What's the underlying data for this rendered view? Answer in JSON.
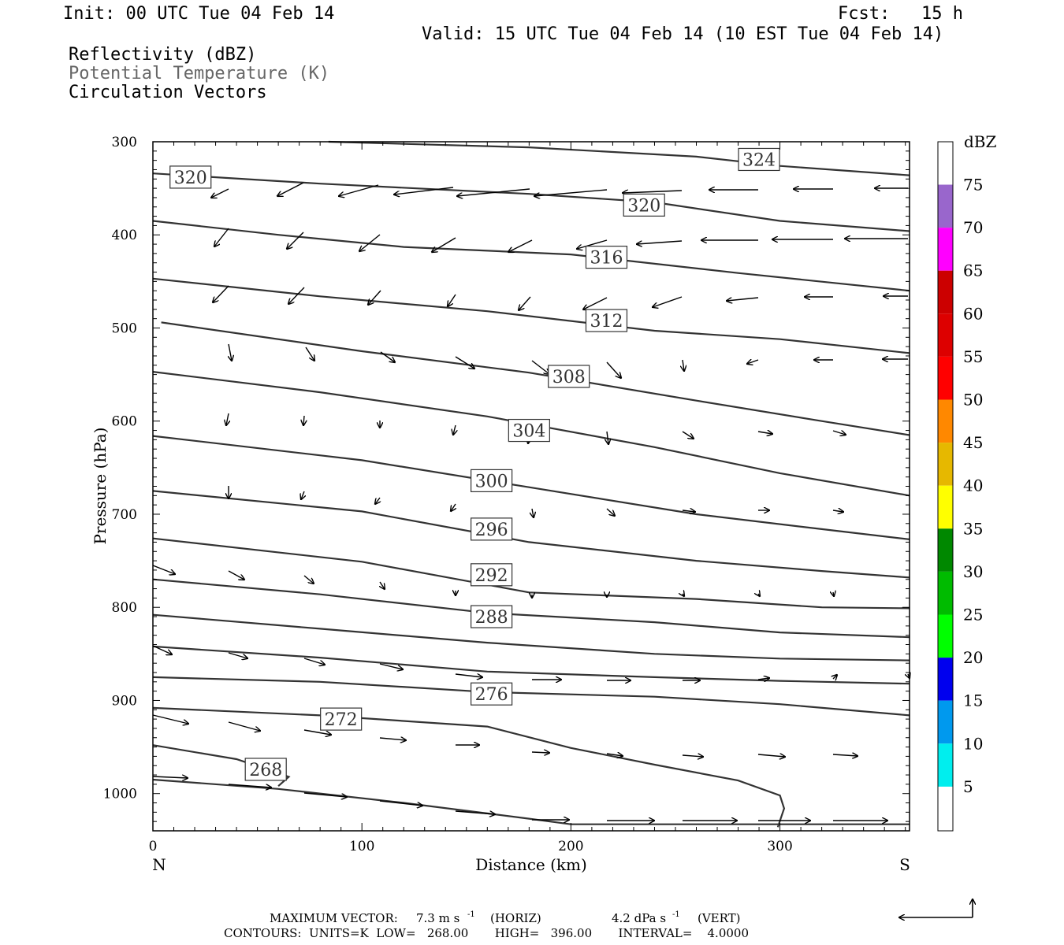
{
  "header": {
    "init": "Init: 00 UTC Tue 04 Feb 14",
    "fcst": "Fcst:   15 h",
    "valid": "Valid: 15 UTC Tue 04 Feb 14 (10 EST Tue 04 Feb 14)",
    "fields": [
      "Reflectivity (dBZ)",
      "Potential Temperature (K)",
      "Circulation Vectors"
    ]
  },
  "colors": {
    "potential_temperature_label": "#666666",
    "contour": "#333333",
    "frame": "#000000"
  },
  "chart_data": {
    "type": "line",
    "title": "",
    "xlabel": "Distance (km)",
    "ylabel": "Pressure (hPa)",
    "x_range": [
      0,
      362
    ],
    "y_range": [
      300,
      1040
    ],
    "y_inverted": true,
    "x_ticks": [
      0,
      100,
      200,
      300
    ],
    "y_ticks": [
      300,
      400,
      500,
      600,
      700,
      800,
      900,
      1000
    ],
    "x_end_labels": {
      "left": "N",
      "right": "S"
    },
    "contour_labels": [
      324,
      320,
      320,
      316,
      312,
      308,
      304,
      300,
      296,
      292,
      288,
      276,
      272,
      268
    ],
    "contour_label_positions": [
      {
        "value": 324,
        "x": 290,
        "p": 319
      },
      {
        "value": 320,
        "x": 18,
        "p": 338
      },
      {
        "value": 320,
        "x": 235,
        "p": 368
      },
      {
        "value": 316,
        "x": 217,
        "p": 424
      },
      {
        "value": 312,
        "x": 217,
        "p": 492
      },
      {
        "value": 308,
        "x": 199,
        "p": 552
      },
      {
        "value": 304,
        "x": 180,
        "p": 610
      },
      {
        "value": 300,
        "x": 162,
        "p": 664
      },
      {
        "value": 296,
        "x": 162,
        "p": 716
      },
      {
        "value": 292,
        "x": 162,
        "p": 765
      },
      {
        "value": 288,
        "x": 162,
        "p": 810
      },
      {
        "value": 276,
        "x": 162,
        "p": 893
      },
      {
        "value": 272,
        "x": 90,
        "p": 920
      },
      {
        "value": 268,
        "x": 54,
        "p": 974
      }
    ],
    "series": [
      {
        "x": [
          84,
          180,
          260,
          300,
          362
        ],
        "p": [
          300,
          306,
          316,
          326,
          336
        ]
      },
      {
        "x": [
          0,
          80,
          180,
          240,
          300,
          362
        ],
        "p": [
          334,
          345,
          356,
          365,
          385,
          396
        ]
      },
      {
        "x": [
          0,
          60,
          120,
          200,
          280,
          362
        ],
        "p": [
          385,
          400,
          413,
          421,
          441,
          460
        ]
      },
      {
        "x": [
          0,
          80,
          160,
          240,
          300,
          362
        ],
        "p": [
          447,
          466,
          482,
          503,
          512,
          527
        ]
      },
      {
        "x": [
          4,
          100,
          180,
          260,
          320,
          362
        ],
        "p": [
          494,
          525,
          548,
          578,
          600,
          615
        ]
      },
      {
        "x": [
          0,
          80,
          160,
          240,
          300,
          362
        ],
        "p": [
          547,
          569,
          595,
          628,
          656,
          680
        ]
      },
      {
        "x": [
          0,
          100,
          180,
          260,
          320,
          362
        ],
        "p": [
          616,
          642,
          671,
          700,
          716,
          727
        ]
      },
      {
        "x": [
          0,
          100,
          180,
          260,
          320,
          362
        ],
        "p": [
          675,
          697,
          730,
          750,
          761,
          768
        ]
      },
      {
        "x": [
          0,
          100,
          180,
          260,
          320,
          362
        ],
        "p": [
          726,
          751,
          784,
          791,
          800,
          801
        ]
      },
      {
        "x": [
          0,
          80,
          160,
          240,
          300,
          362
        ],
        "p": [
          770,
          786,
          806,
          816,
          827,
          832
        ]
      },
      {
        "x": [
          0,
          80,
          160,
          240,
          300,
          362
        ],
        "p": [
          808,
          823,
          838,
          850,
          855,
          857
        ]
      },
      {
        "x": [
          0,
          80,
          160,
          240,
          300,
          362
        ],
        "p": [
          842,
          854,
          869,
          875,
          879,
          882
        ]
      },
      {
        "x": [
          0,
          80,
          160,
          240,
          300,
          362
        ],
        "p": [
          875,
          880,
          891,
          896,
          904,
          916
        ]
      },
      {
        "x": [
          0,
          80,
          160,
          200,
          240,
          280,
          300,
          302,
          299
        ],
        "p": [
          908,
          916,
          928,
          951,
          969,
          986,
          1002,
          1016,
          1036
        ]
      },
      {
        "x": [
          0,
          40,
          65,
          60
        ],
        "p": [
          948,
          963,
          982,
          992
        ]
      },
      {
        "x": [
          0,
          60,
          120,
          180,
          200,
          362
        ],
        "p": [
          985,
          995,
          1010,
          1027,
          1033,
          1033
        ]
      }
    ]
  },
  "colorbar": {
    "unit": "dBZ",
    "labels": [
      75,
      70,
      65,
      60,
      55,
      50,
      45,
      40,
      35,
      30,
      25,
      20,
      15,
      10,
      5
    ],
    "colors": [
      "#9966cc",
      "#ff00ff",
      "#cc0000",
      "#dd0000",
      "#ff0000",
      "#ff8800",
      "#e6b800",
      "#ffff00",
      "#008800",
      "#00bb00",
      "#00ff00",
      "#0000ee",
      "#0099ee",
      "#00eeee"
    ]
  },
  "footer": {
    "max_vector_label": "MAXIMUM VECTOR:",
    "max_vector_horiz": "7.3 m s",
    "horiz_exp": "-1",
    "horiz_word": "(HORIZ)",
    "max_vector_vert": "4.2 dPa s",
    "vert_exp": "-1",
    "vert_word": "(VERT)",
    "contours_line": "CONTOURS:  UNITS=K  LOW=   268.00       HIGH=   396.00       INTERVAL=    4.0000"
  }
}
